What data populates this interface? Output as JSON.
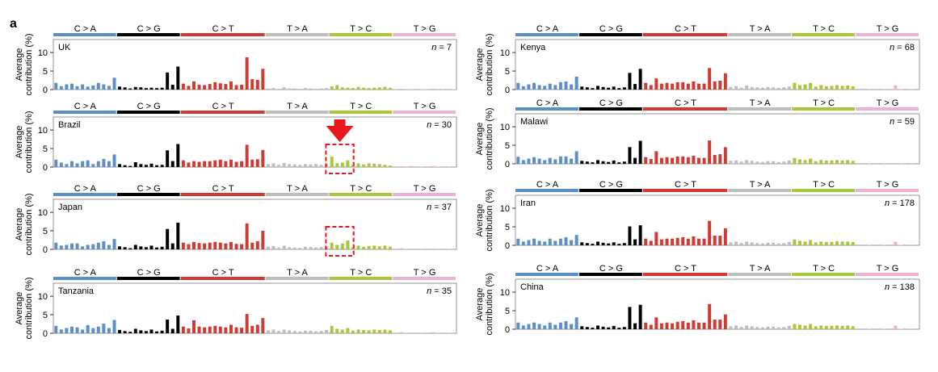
{
  "figure": {
    "panel_letter": "a",
    "mutation_types": [
      "C > A",
      "C > G",
      "C > T",
      "T > A",
      "T > C",
      "T > G"
    ],
    "colors": {
      "C>A": "#5b8fc7",
      "C>G": "#000000",
      "C>T": "#d03a33",
      "T>A": "#bdbdbd",
      "T>C": "#a6c83a",
      "T>G": "#eab3d6",
      "highlight": "#e8171c"
    },
    "highlight": {
      "arrow_panel": "Brazil",
      "box_panels": [
        "Brazil",
        "Japan"
      ],
      "box_group": "T > C"
    }
  },
  "chart_data": [
    {
      "type": "bar",
      "country": "UK",
      "n_label": "n",
      "n_value": "= 7",
      "ylabel": "Average contribution (%)",
      "ylim": [
        0,
        13.5
      ],
      "yticks": [
        0,
        5,
        10
      ],
      "values": [
        1.8,
        0.9,
        1.4,
        1.6,
        0.9,
        1.4,
        0.8,
        1.1,
        1.8,
        1.4,
        1.0,
        3.2,
        0.8,
        0.6,
        0.3,
        0.7,
        0.6,
        0.4,
        0.5,
        0.4,
        0.5,
        4.6,
        1.3,
        6.2,
        1.6,
        1.0,
        2.2,
        1.3,
        1.2,
        1.5,
        2.0,
        1.7,
        1.5,
        2.2,
        1.2,
        1.3,
        8.7,
        2.8,
        2.6,
        5.6,
        0.3,
        0.4,
        0.2,
        0.6,
        0.3,
        0.3,
        0.2,
        0.4,
        0.3,
        0.2,
        0.3,
        0.4,
        0.9,
        1.2,
        0.6,
        0.5,
        0.4,
        0.7,
        0.5,
        0.4,
        0.5,
        0.6,
        0.7,
        0.5,
        0.1,
        0.2,
        0.1,
        0.1,
        0.2,
        0.1,
        0.1,
        0.2,
        0.1,
        0.1,
        0.2,
        0.1
      ]
    },
    {
      "type": "bar",
      "country": "Brazil",
      "n_label": "n",
      "n_value": "= 30",
      "ylabel": "Average contribution (%)",
      "ylim": [
        0,
        13.5
      ],
      "yticks": [
        0,
        5,
        10
      ],
      "values": [
        2.0,
        1.2,
        0.8,
        1.6,
        1.0,
        1.6,
        1.8,
        0.8,
        1.6,
        2.2,
        1.6,
        3.4,
        0.8,
        0.5,
        0.3,
        1.3,
        0.8,
        0.6,
        0.9,
        0.5,
        0.6,
        4.5,
        1.6,
        6.2,
        1.8,
        1.2,
        1.6,
        1.4,
        1.6,
        1.6,
        1.8,
        2.0,
        1.6,
        2.0,
        1.4,
        1.6,
        6.0,
        2.0,
        2.1,
        4.6,
        0.8,
        1.0,
        0.6,
        1.1,
        0.8,
        0.7,
        0.6,
        0.8,
        0.7,
        0.8,
        0.6,
        1.0,
        2.8,
        1.0,
        1.2,
        1.8,
        0.6,
        1.0,
        0.7,
        1.0,
        0.9,
        0.8,
        0.6,
        0.4,
        0.2,
        0.2,
        0.1,
        0.3,
        0.2,
        0.1,
        0.2,
        0.3,
        0.1,
        0.2,
        0.1,
        0.2
      ]
    },
    {
      "type": "bar",
      "country": "Japan",
      "n_label": "n",
      "n_value": "= 37",
      "ylabel": "Average contribution (%)",
      "ylim": [
        0,
        13.5
      ],
      "yticks": [
        0,
        5,
        10
      ],
      "values": [
        1.8,
        1.0,
        1.2,
        1.6,
        1.6,
        0.8,
        1.2,
        1.4,
        1.8,
        2.2,
        1.2,
        2.8,
        0.8,
        0.6,
        0.3,
        1.2,
        0.8,
        0.6,
        1.0,
        0.5,
        0.7,
        5.5,
        1.6,
        7.2,
        1.8,
        1.4,
        2.0,
        1.7,
        1.6,
        1.8,
        2.0,
        1.8,
        1.6,
        2.0,
        1.5,
        1.4,
        7.0,
        1.8,
        2.2,
        5.0,
        0.7,
        0.9,
        0.5,
        1.0,
        0.6,
        0.5,
        0.4,
        0.7,
        0.6,
        0.5,
        0.6,
        0.8,
        1.8,
        1.2,
        1.6,
        2.4,
        0.6,
        1.0,
        0.7,
        0.9,
        1.0,
        0.8,
        1.0,
        0.7,
        0.2,
        0.3,
        0.1,
        0.2,
        0.2,
        0.1,
        0.2,
        0.2,
        0.1,
        0.2,
        0.1,
        0.2
      ]
    },
    {
      "type": "bar",
      "country": "Tanzania",
      "n_label": "n",
      "n_value": "= 35",
      "ylabel": "Average contribution (%)",
      "ylim": [
        0,
        13.5
      ],
      "yticks": [
        0,
        5,
        10
      ],
      "values": [
        2.0,
        1.0,
        1.4,
        1.8,
        1.6,
        1.0,
        2.2,
        1.4,
        1.8,
        2.6,
        1.4,
        3.6,
        0.9,
        0.6,
        0.4,
        1.2,
        0.8,
        0.6,
        1.0,
        0.5,
        0.7,
        3.7,
        1.2,
        4.8,
        1.8,
        1.3,
        3.5,
        1.8,
        1.6,
        1.8,
        2.0,
        1.8,
        1.6,
        2.3,
        1.6,
        1.5,
        5.2,
        2.0,
        2.3,
        4.1,
        0.8,
        1.0,
        0.6,
        1.0,
        0.8,
        0.6,
        0.5,
        0.7,
        0.7,
        0.5,
        0.6,
        0.9,
        2.0,
        1.2,
        1.0,
        1.4,
        0.7,
        1.0,
        0.9,
        0.8,
        1.0,
        0.9,
        1.0,
        0.8,
        0.2,
        0.3,
        0.1,
        0.2,
        0.2,
        0.1,
        0.2,
        0.3,
        0.1,
        0.2,
        0.1,
        0.2
      ]
    },
    {
      "type": "bar",
      "country": "Kenya",
      "n_label": "n",
      "n_value": "= 68",
      "ylabel": "Average contribution (%)",
      "ylim": [
        0,
        13.5
      ],
      "yticks": [
        0,
        5,
        10
      ],
      "values": [
        1.8,
        0.9,
        1.4,
        1.8,
        1.2,
        1.0,
        1.6,
        1.2,
        2.0,
        2.2,
        1.4,
        3.5,
        0.8,
        0.6,
        0.4,
        1.0,
        0.7,
        0.5,
        0.8,
        0.4,
        0.6,
        4.5,
        1.5,
        5.6,
        1.8,
        1.2,
        3.0,
        1.6,
        1.8,
        1.6,
        2.0,
        2.0,
        1.6,
        2.2,
        1.6,
        1.6,
        5.8,
        2.2,
        2.4,
        4.4,
        0.7,
        0.9,
        0.5,
        1.1,
        0.7,
        0.6,
        0.5,
        0.7,
        0.6,
        0.5,
        0.6,
        0.8,
        1.8,
        1.2,
        1.4,
        1.8,
        0.8,
        1.2,
        0.9,
        1.0,
        1.2,
        1.0,
        1.1,
        0.9,
        0.2,
        0.3,
        0.1,
        0.2,
        0.2,
        0.1,
        0.2,
        1.2,
        0.1,
        0.2,
        0.1,
        0.2
      ]
    },
    {
      "type": "bar",
      "country": "Malawi",
      "n_label": "n",
      "n_value": "= 59",
      "ylabel": "Average contribution (%)",
      "ylim": [
        0,
        13.5
      ],
      "yticks": [
        0,
        5,
        10
      ],
      "values": [
        1.9,
        1.0,
        1.4,
        1.8,
        1.4,
        1.0,
        1.6,
        1.2,
        2.0,
        2.0,
        1.4,
        3.4,
        0.8,
        0.6,
        0.4,
        1.0,
        0.7,
        0.5,
        0.9,
        0.4,
        0.6,
        4.5,
        1.6,
        6.2,
        1.8,
        1.3,
        3.4,
        1.6,
        1.8,
        1.6,
        2.0,
        2.0,
        1.8,
        2.2,
        1.6,
        1.6,
        6.3,
        2.4,
        2.6,
        4.5,
        0.8,
        0.9,
        0.6,
        1.0,
        0.8,
        0.6,
        0.5,
        0.7,
        0.7,
        0.5,
        0.6,
        0.9,
        1.6,
        1.2,
        1.0,
        1.4,
        0.7,
        1.0,
        0.9,
        0.9,
        1.0,
        0.9,
        1.0,
        0.8,
        0.2,
        0.2,
        0.1,
        0.2,
        0.2,
        0.1,
        0.2,
        0.2,
        0.1,
        0.2,
        0.1,
        0.2
      ]
    },
    {
      "type": "bar",
      "country": "Iran",
      "n_label": "n",
      "n_value": "= 178",
      "ylabel": "Average contribution (%)",
      "ylim": [
        0,
        13.5
      ],
      "yticks": [
        0,
        5,
        10
      ],
      "values": [
        1.8,
        1.0,
        1.4,
        1.8,
        1.2,
        1.0,
        1.8,
        1.2,
        1.8,
        2.2,
        1.4,
        2.8,
        0.8,
        0.6,
        0.4,
        1.0,
        0.7,
        0.5,
        0.8,
        0.4,
        0.6,
        5.1,
        1.6,
        5.4,
        1.8,
        1.2,
        3.6,
        1.6,
        1.8,
        1.8,
        2.0,
        2.2,
        1.8,
        2.4,
        1.8,
        1.8,
        6.6,
        2.6,
        2.6,
        4.6,
        0.8,
        1.0,
        0.6,
        1.0,
        0.8,
        0.6,
        0.5,
        0.7,
        0.7,
        0.5,
        0.6,
        0.9,
        1.6,
        1.2,
        1.0,
        1.4,
        0.8,
        1.0,
        0.9,
        0.9,
        1.1,
        1.0,
        1.0,
        0.9,
        0.2,
        0.2,
        0.1,
        0.2,
        0.2,
        0.1,
        0.2,
        1.0,
        0.1,
        0.2,
        0.1,
        0.2
      ]
    },
    {
      "type": "bar",
      "country": "China",
      "n_label": "n",
      "n_value": "= 138",
      "ylabel": "Average contribution (%)",
      "ylim": [
        0,
        13.5
      ],
      "yticks": [
        0,
        5,
        10
      ],
      "values": [
        1.8,
        1.0,
        1.4,
        1.8,
        1.4,
        1.0,
        1.8,
        1.2,
        1.8,
        2.2,
        1.4,
        3.2,
        0.8,
        0.6,
        0.4,
        1.0,
        0.7,
        0.5,
        0.9,
        0.4,
        0.6,
        6.0,
        1.6,
        6.6,
        1.8,
        1.2,
        3.2,
        1.6,
        1.8,
        1.6,
        2.0,
        2.2,
        1.8,
        2.4,
        1.8,
        1.8,
        6.8,
        2.6,
        2.6,
        4.0,
        0.8,
        1.0,
        0.6,
        1.0,
        0.8,
        0.6,
        0.5,
        0.7,
        0.7,
        0.5,
        0.6,
        0.9,
        1.4,
        1.2,
        1.0,
        1.4,
        0.8,
        1.0,
        0.9,
        0.9,
        1.0,
        0.9,
        1.0,
        0.8,
        0.2,
        0.2,
        0.1,
        0.2,
        0.2,
        0.1,
        0.2,
        1.0,
        0.1,
        0.2,
        0.1,
        0.2
      ]
    }
  ]
}
